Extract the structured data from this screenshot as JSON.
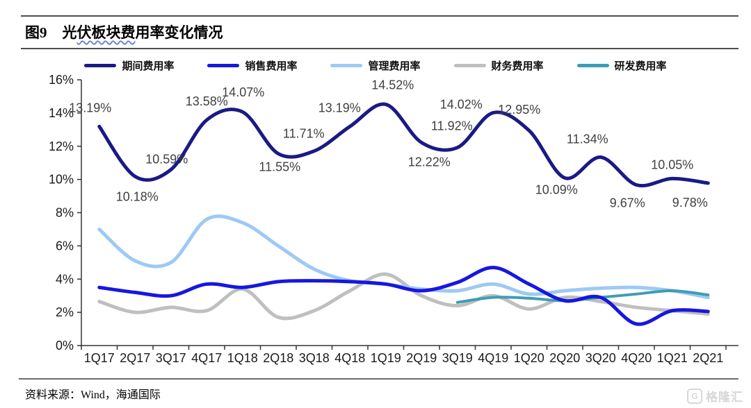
{
  "header": {
    "figure_label": "图9",
    "title_pre": "光",
    "title_wavy": "伏板块费",
    "title_post": "用率变化情况"
  },
  "footer": {
    "source_label": "资料来源：",
    "source_text": "Wind，海通国际"
  },
  "watermark": {
    "logo_letter": "G",
    "text": "格隆汇"
  },
  "chart_data": {
    "type": "line",
    "smoothed": true,
    "grid": false,
    "legend_position": "top",
    "title": "光伏板块费用率变化情况",
    "y_axis": {
      "min": 0,
      "max": 16,
      "step": 2,
      "suffix": "%",
      "tick_labels": [
        "0%",
        "2%",
        "4%",
        "6%",
        "8%",
        "10%",
        "12%",
        "14%",
        "16%"
      ]
    },
    "categories": [
      "1Q17",
      "2Q17",
      "3Q17",
      "4Q17",
      "1Q18",
      "2Q18",
      "3Q18",
      "4Q18",
      "1Q19",
      "2Q19",
      "3Q19",
      "4Q19",
      "1Q20",
      "2Q20",
      "3Q20",
      "4Q20",
      "1Q21",
      "2Q21"
    ],
    "series": [
      {
        "name": "期间费用率",
        "color": "#1a1a86",
        "width": 5,
        "values": [
          13.19,
          10.18,
          10.59,
          13.58,
          14.07,
          11.55,
          11.71,
          13.19,
          14.52,
          12.22,
          11.92,
          14.02,
          12.95,
          10.09,
          11.34,
          9.67,
          10.05,
          9.78
        ],
        "point_labels": [
          {
            "text": "13.19%",
            "dx": -13,
            "dy": -27
          },
          {
            "text": "10.18%",
            "dx": 3,
            "dy": 29
          },
          {
            "text": "10.59%",
            "dx": -6,
            "dy": -15
          },
          {
            "text": "13.58%",
            "dx": 0,
            "dy": -27
          },
          {
            "text": "14.07%",
            "dx": 1,
            "dy": -28
          },
          {
            "text": "11.55%",
            "dx": 2,
            "dy": 19
          },
          {
            "text": "11.71%",
            "dx": -15,
            "dy": -25
          },
          {
            "text": "13.19%",
            "dx": -15,
            "dy": -27
          },
          {
            "text": "14.52%",
            "dx": 10,
            "dy": -28
          },
          {
            "text": "12.22%",
            "dx": 11,
            "dy": 28
          },
          {
            "text": "11.92%",
            "dx": -8,
            "dy": -31
          },
          {
            "text": "14.02%",
            "dx": -46,
            "dy": -12
          },
          {
            "text": "12.95%",
            "dx": -14,
            "dy": -30
          },
          {
            "text": "10.09%",
            "dx": -12,
            "dy": 17
          },
          {
            "text": "11.34%",
            "dx": -19,
            "dy": -26
          },
          {
            "text": "9.67%",
            "dx": -13,
            "dy": 26
          },
          {
            "text": "10.05%",
            "dx": 0,
            "dy": -20
          },
          {
            "text": "9.78%",
            "dx": -26,
            "dy": 28
          }
        ]
      },
      {
        "name": "销售费用率",
        "color": "#1717e0",
        "width": 5,
        "values": [
          3.5,
          3.2,
          3.0,
          3.7,
          3.5,
          3.85,
          3.9,
          3.85,
          3.7,
          3.3,
          3.8,
          4.7,
          3.7,
          2.7,
          2.9,
          1.3,
          2.1,
          2.05
        ]
      },
      {
        "name": "管理费用率",
        "color": "#9dc9f4",
        "width": 5,
        "values": [
          7.0,
          5.1,
          5.0,
          7.6,
          7.4,
          6.0,
          4.6,
          3.9,
          3.7,
          3.4,
          3.3,
          3.7,
          3.1,
          3.3,
          3.45,
          3.5,
          3.3,
          2.9
        ]
      },
      {
        "name": "财务费用率",
        "color": "#bfbfbf",
        "width": 5,
        "values": [
          2.65,
          2.0,
          2.3,
          2.1,
          3.4,
          1.7,
          2.1,
          3.3,
          4.3,
          3.0,
          2.4,
          3.0,
          2.2,
          2.9,
          2.65,
          2.3,
          2.1,
          1.9
        ]
      },
      {
        "name": "研发费用率",
        "color": "#3e9db5",
        "width": 4,
        "values": [
          null,
          null,
          null,
          null,
          null,
          null,
          null,
          null,
          null,
          null,
          2.6,
          2.9,
          2.85,
          2.7,
          2.9,
          3.1,
          3.3,
          3.05
        ]
      }
    ]
  }
}
